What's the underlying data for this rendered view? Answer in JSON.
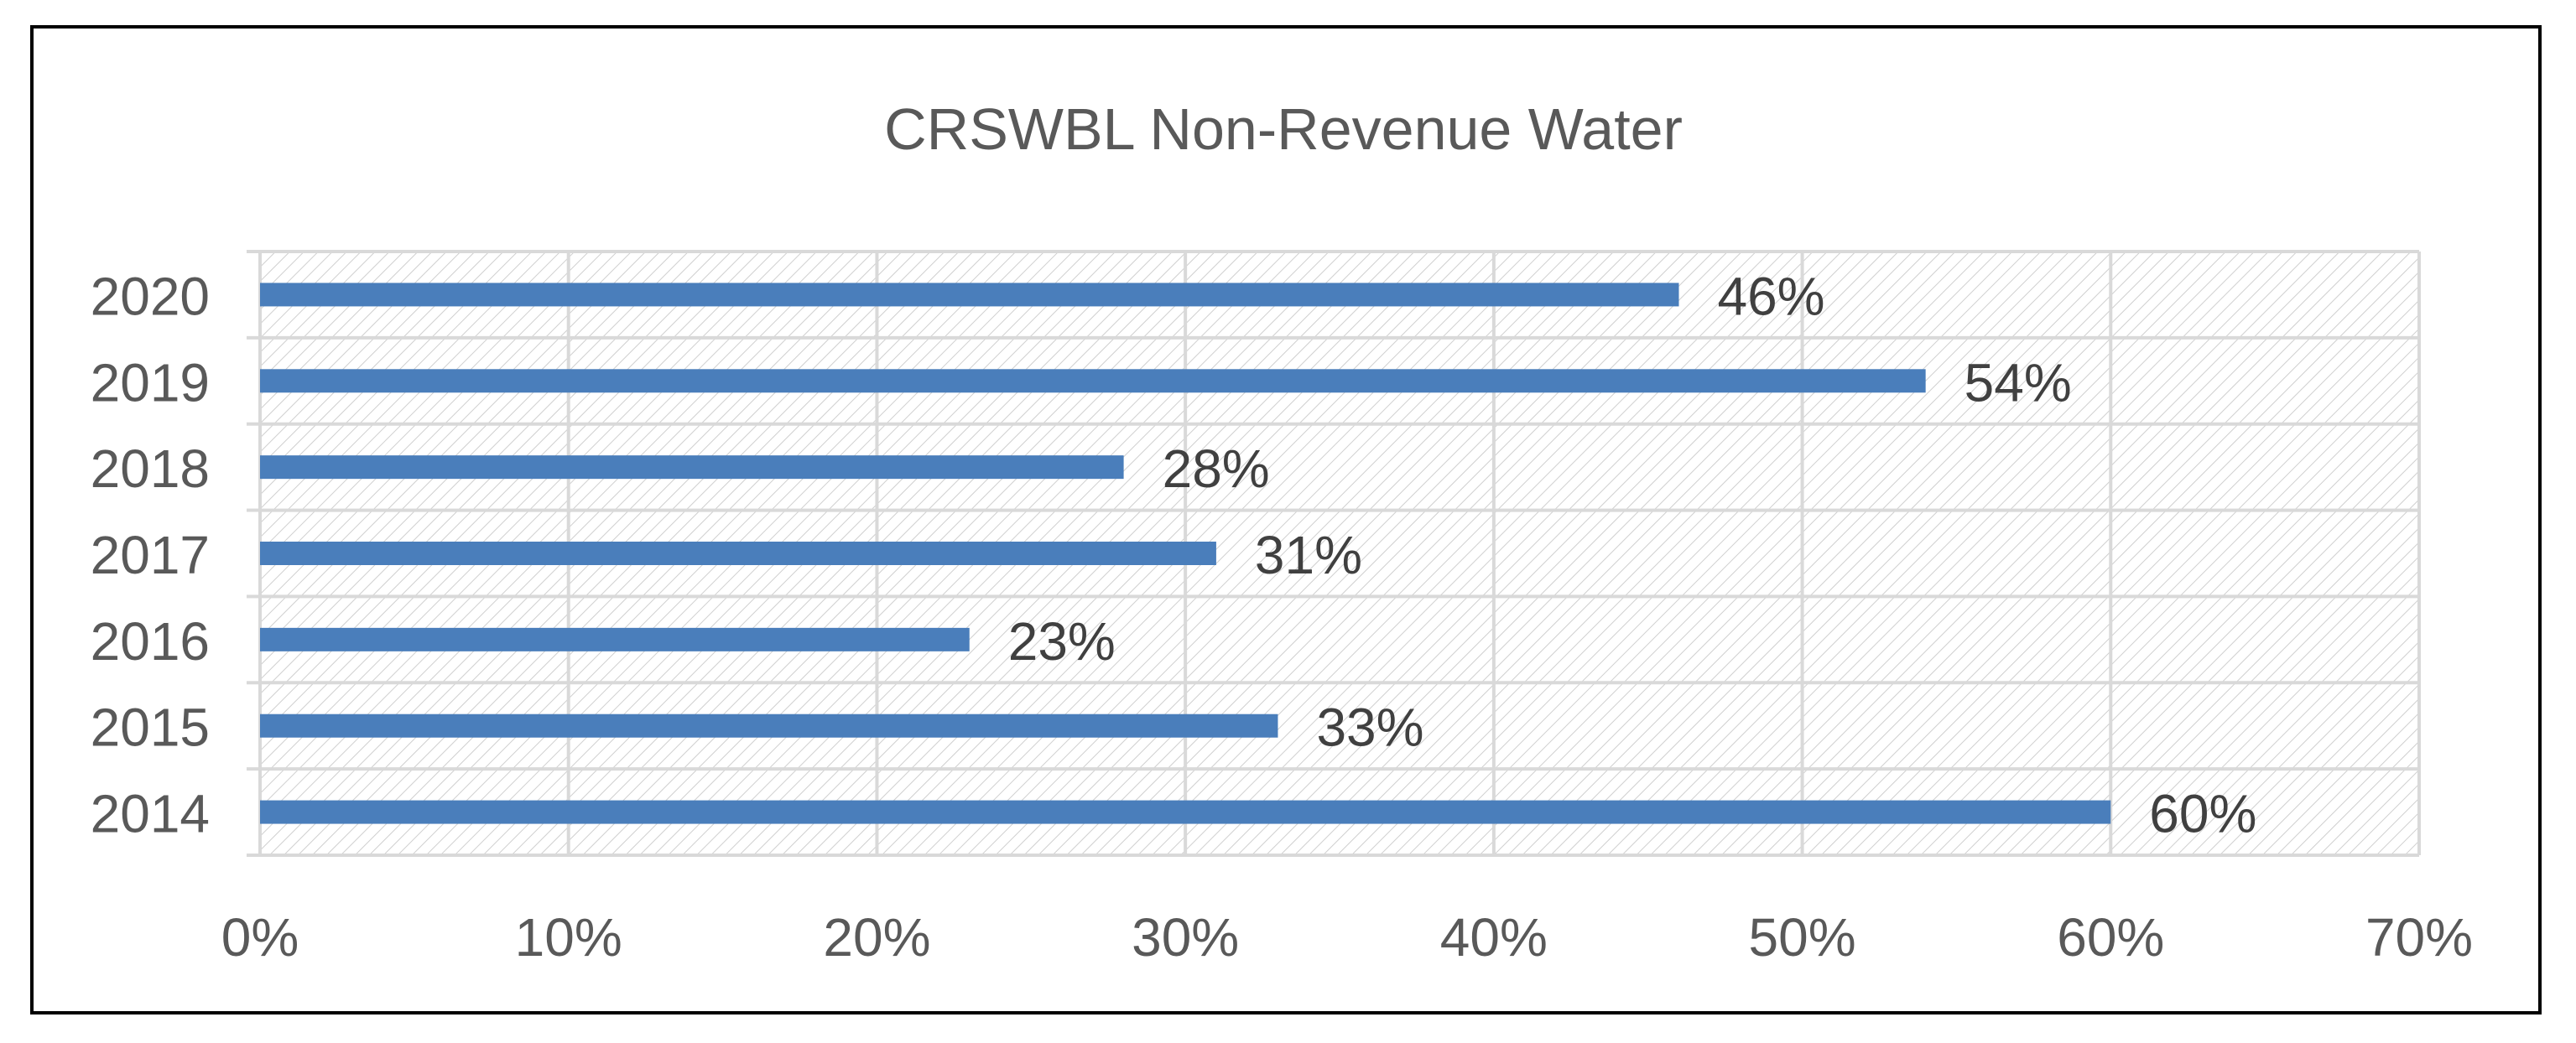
{
  "chart_data": {
    "type": "bar",
    "orientation": "horizontal",
    "title": "CRSWBL Non-Revenue Water",
    "xlabel": "",
    "ylabel": "",
    "categories": [
      "2020",
      "2019",
      "2018",
      "2017",
      "2016",
      "2015",
      "2014"
    ],
    "values": [
      46,
      54,
      28,
      31,
      23,
      33,
      60
    ],
    "data_labels": [
      "46%",
      "54%",
      "28%",
      "31%",
      "23%",
      "33%",
      "60%"
    ],
    "xlim": [
      0,
      70
    ],
    "x_ticks": [
      0,
      10,
      20,
      30,
      40,
      50,
      60,
      70
    ],
    "x_tick_labels": [
      "0%",
      "10%",
      "20%",
      "30%",
      "40%",
      "50%",
      "60%",
      "70%"
    ],
    "grid": true,
    "legend": "none",
    "colors": {
      "bar": "#4a7ebb",
      "grid": "#d9d9d9",
      "hatch": "#c8c8c8",
      "frame": "#000000"
    }
  }
}
